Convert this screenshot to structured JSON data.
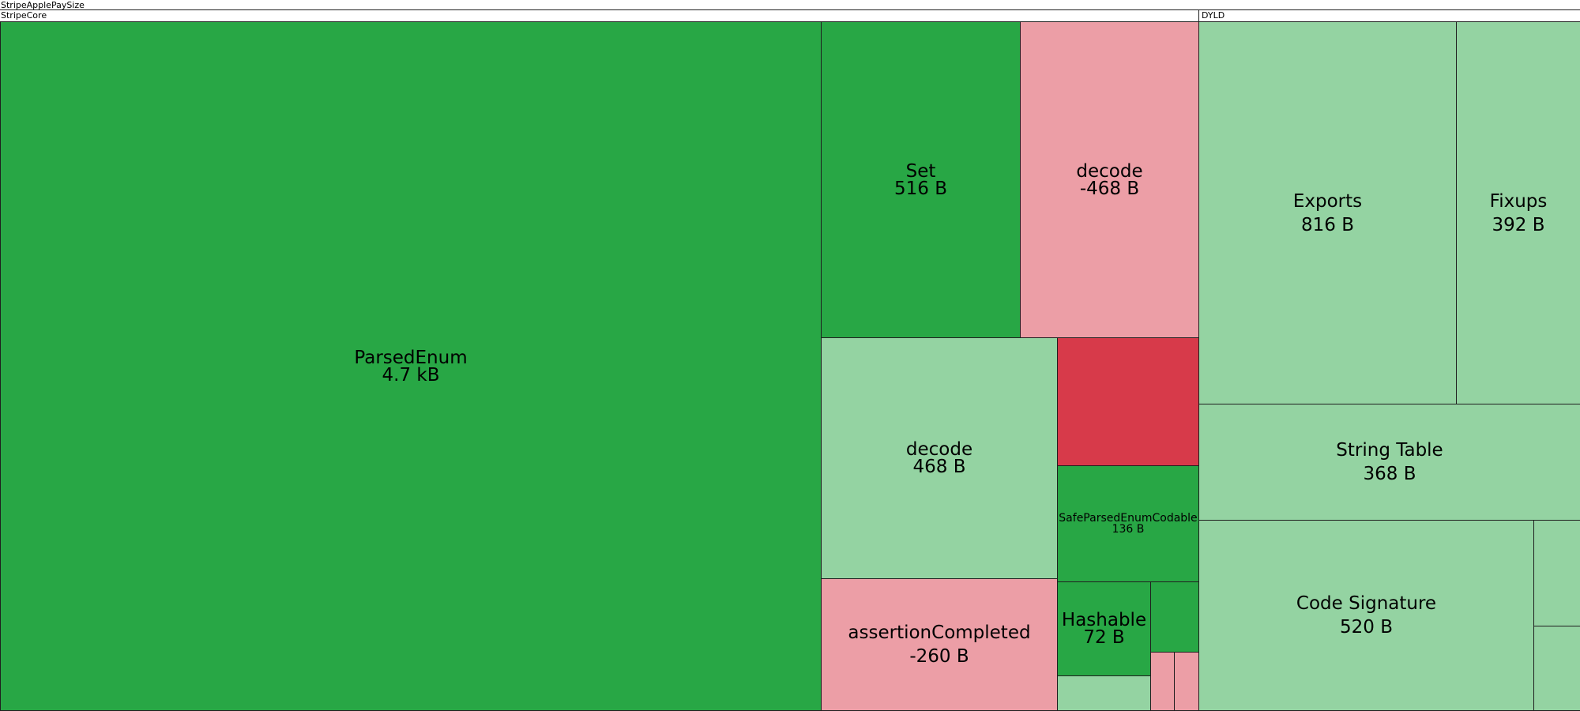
{
  "treemap": {
    "root_label": "StripeApplePaySize",
    "groups": [
      {
        "key": "core",
        "label": "StripeCore",
        "items": [
          {
            "key": "parsedenum",
            "name": "ParsedEnum",
            "value": "4.7 kB"
          },
          {
            "key": "set",
            "name": "Set",
            "value": "516 B"
          },
          {
            "key": "decode_neg",
            "name": "decode",
            "value": "-468 B"
          },
          {
            "key": "decode_pos",
            "name": "decode",
            "value": "468 B"
          },
          {
            "key": "unlabeled_red",
            "name": "",
            "value": ""
          },
          {
            "key": "safeparsed",
            "name": "SafeParsedEnumCodable",
            "value": "136 B"
          },
          {
            "key": "assertion",
            "name": "assertionCompleted",
            "value": "-260 B"
          },
          {
            "key": "hashable",
            "name": "Hashable",
            "value": "72 B"
          },
          {
            "key": "unlabeled_green",
            "name": "",
            "value": ""
          },
          {
            "key": "unlabeled_lt_green",
            "name": "",
            "value": ""
          },
          {
            "key": "unlabeled_pink_a",
            "name": "",
            "value": ""
          },
          {
            "key": "unlabeled_pink_b",
            "name": "",
            "value": ""
          }
        ]
      },
      {
        "key": "dyld",
        "label": "DYLD",
        "items": [
          {
            "key": "exports",
            "name": "Exports",
            "value": "816 B"
          },
          {
            "key": "fixups",
            "name": "Fixups",
            "value": "392 B"
          },
          {
            "key": "stringtable",
            "name": "String Table",
            "value": "368 B"
          },
          {
            "key": "codesig",
            "name": "Code Signature",
            "value": "520 B"
          },
          {
            "key": "unlabeled_dyld_a",
            "name": "",
            "value": ""
          },
          {
            "key": "unlabeled_dyld_b",
            "name": "",
            "value": ""
          }
        ]
      }
    ],
    "colors": {
      "dark_green": "#28a745",
      "light_green": "#94d3a2",
      "light_red": "#ec9ea6",
      "dark_red": "#d73a4a"
    }
  },
  "chart_data": {
    "type": "treemap",
    "root": "StripeApplePaySize",
    "children": [
      {
        "name": "StripeCore",
        "children": [
          {
            "name": "ParsedEnum",
            "value_label": "4.7 kB",
            "bytes": 4700
          },
          {
            "name": "Set",
            "value_label": "516 B",
            "bytes": 516
          },
          {
            "name": "decode",
            "value_label": "-468 B",
            "bytes": -468
          },
          {
            "name": "decode",
            "value_label": "468 B",
            "bytes": 468
          },
          {
            "name": "SafeParsedEnumCodable",
            "value_label": "136 B",
            "bytes": 136
          },
          {
            "name": "assertionCompleted",
            "value_label": "-260 B",
            "bytes": -260
          },
          {
            "name": "Hashable",
            "value_label": "72 B",
            "bytes": 72
          }
        ]
      },
      {
        "name": "DYLD",
        "children": [
          {
            "name": "Exports",
            "value_label": "816 B",
            "bytes": 816
          },
          {
            "name": "Fixups",
            "value_label": "392 B",
            "bytes": 392
          },
          {
            "name": "String Table",
            "value_label": "368 B",
            "bytes": 368
          },
          {
            "name": "Code Signature",
            "value_label": "520 B",
            "bytes": 520
          }
        ]
      }
    ]
  }
}
